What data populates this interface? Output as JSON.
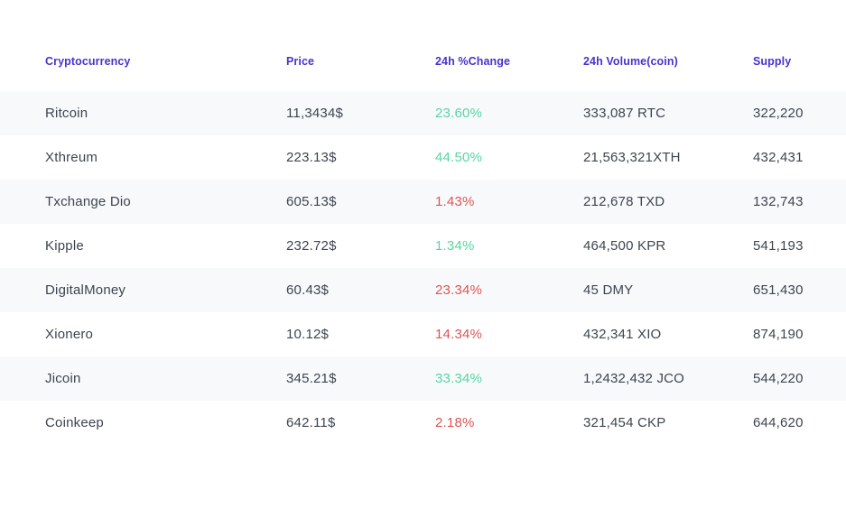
{
  "colors": {
    "header_text": "#4733cc",
    "positive": "#55d7a2",
    "negative": "#dc5555",
    "body_text": "#3d454f",
    "row_alt_bg": "#f8f9fb",
    "page_bg": "#ffffff"
  },
  "table": {
    "columns": [
      {
        "label": "Cryptocurrency"
      },
      {
        "label": "Price"
      },
      {
        "label": "24h %Change"
      },
      {
        "label": "24h Volume(coin)"
      },
      {
        "label": "Supply"
      }
    ],
    "rows": [
      {
        "name": "Ritcoin",
        "price": "11,3434$",
        "change": "23.60%",
        "direction": "up",
        "volume": "333,087 RTC",
        "supply": "322,220"
      },
      {
        "name": "Xthreum",
        "price": "223.13$",
        "change": "44.50%",
        "direction": "up",
        "volume": "21,563,321XTH",
        "supply": "432,431"
      },
      {
        "name": "Txchange Dio",
        "price": "605.13$",
        "change": "1.43%",
        "direction": "down",
        "volume": "212,678 TXD",
        "supply": "132,743"
      },
      {
        "name": "Kipple",
        "price": "232.72$",
        "change": "1.34%",
        "direction": "up",
        "volume": "464,500 KPR",
        "supply": "541,193"
      },
      {
        "name": "DigitalMoney",
        "price": "60.43$",
        "change": "23.34%",
        "direction": "down",
        "volume": "45 DMY",
        "supply": "651,430"
      },
      {
        "name": "Xionero",
        "price": "10.12$",
        "change": "14.34%",
        "direction": "down",
        "volume": "432,341 XIO",
        "supply": "874,190"
      },
      {
        "name": "Jicoin",
        "price": "345.21$",
        "change": "33.34%",
        "direction": "up",
        "volume": "1,2432,432 JCO",
        "supply": "544,220"
      },
      {
        "name": "Coinkeep",
        "price": "642.11$",
        "change": "2.18%",
        "direction": "down",
        "volume": "321,454 CKP",
        "supply": "644,620"
      }
    ]
  }
}
